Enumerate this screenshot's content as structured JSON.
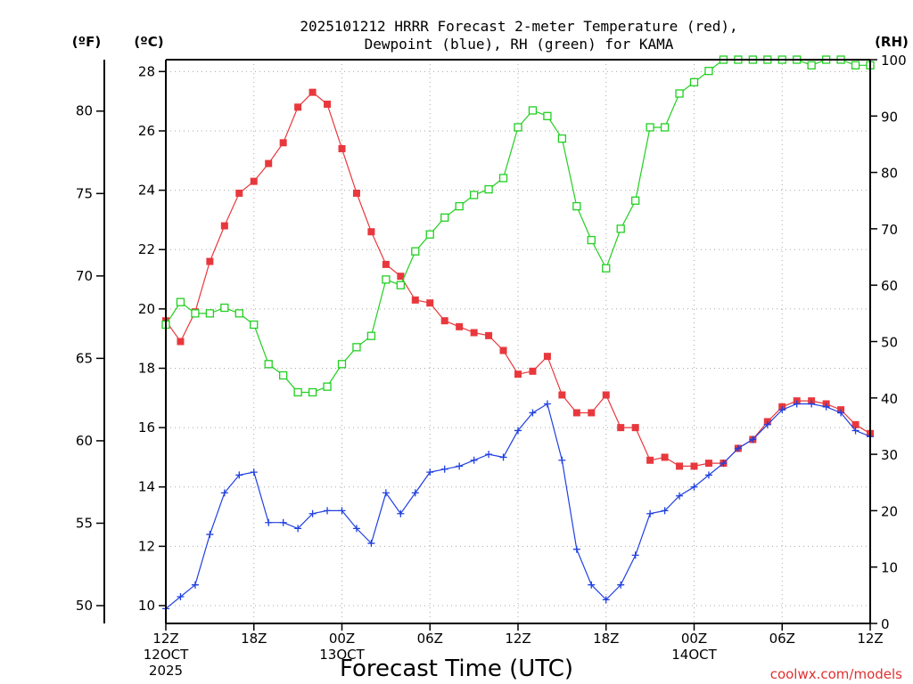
{
  "chart_data": {
    "type": "line",
    "title_line1": "2025101212 HRRR Forecast 2-meter Temperature (red),",
    "title_line2": "Dewpoint (blue), RH (green) for KAMA",
    "xlabel": "Forecast Time (UTC)",
    "credit": "coolwx.com/models",
    "unit_labels": {
      "fahrenheit": "(ºF)",
      "celsius": "(ºC)",
      "rh": "(RH)"
    },
    "x_ticks": [
      {
        "h": 0,
        "label": "12Z",
        "sub1": "12OCT",
        "sub2": "2025"
      },
      {
        "h": 6,
        "label": "18Z"
      },
      {
        "h": 12,
        "label": "00Z",
        "sub1": "13OCT"
      },
      {
        "h": 18,
        "label": "06Z"
      },
      {
        "h": 24,
        "label": "12Z"
      },
      {
        "h": 30,
        "label": "18Z"
      },
      {
        "h": 36,
        "label": "00Z",
        "sub1": "14OCT"
      },
      {
        "h": 42,
        "label": "06Z"
      },
      {
        "h": 48,
        "label": "12Z"
      }
    ],
    "celsius_ticks": [
      "10",
      "12",
      "14",
      "16",
      "18",
      "20",
      "22",
      "24",
      "26",
      "28"
    ],
    "fahrenheit_ticks": [
      "50",
      "55",
      "60",
      "65",
      "70",
      "75",
      "80"
    ],
    "rh_ticks": [
      "0",
      "10",
      "20",
      "30",
      "40",
      "50",
      "60",
      "70",
      "80",
      "90",
      "100"
    ],
    "xlim": [
      0,
      48
    ],
    "ylim_c": [
      9.4,
      28.4
    ],
    "ylim_rh": [
      0,
      100
    ],
    "series": [
      {
        "name": "Temperature",
        "color": "#e8383d",
        "marker": "filled-square",
        "values": [
          19.6,
          18.9,
          19.9,
          21.6,
          22.8,
          23.9,
          24.3,
          24.9,
          25.6,
          26.8,
          27.3,
          26.9,
          25.4,
          23.9,
          22.6,
          21.5,
          21.1,
          20.3,
          20.2,
          19.6,
          19.4,
          19.2,
          19.1,
          18.6,
          17.8,
          17.9,
          18.4,
          17.1,
          16.5,
          16.5,
          17.1,
          16.0,
          16.0,
          14.9,
          15.0,
          14.7,
          14.7,
          14.8,
          14.8,
          15.3,
          15.6,
          16.2,
          16.7,
          16.9,
          16.9,
          16.8,
          16.6,
          16.1,
          15.8
        ]
      },
      {
        "name": "Dewpoint",
        "color": "#2040e0",
        "marker": "plus",
        "values": [
          9.9,
          10.3,
          10.7,
          12.4,
          13.8,
          14.4,
          14.5,
          12.8,
          12.8,
          12.6,
          13.1,
          13.2,
          13.2,
          12.6,
          12.1,
          13.8,
          13.1,
          13.8,
          14.5,
          14.6,
          14.7,
          14.9,
          15.1,
          15.0,
          15.9,
          16.5,
          16.8,
          14.9,
          11.9,
          10.7,
          10.2,
          10.7,
          11.7,
          13.1,
          13.2,
          13.7,
          14.0,
          14.4,
          14.8,
          15.3,
          15.6,
          16.1,
          16.6,
          16.8,
          16.8,
          16.7,
          16.5,
          15.9,
          15.7
        ]
      },
      {
        "name": "RH",
        "color": "#20d020",
        "marker": "open-square",
        "values": [
          53,
          57,
          55,
          55,
          56,
          55,
          53,
          46,
          44,
          41,
          41,
          42,
          46,
          49,
          51,
          61,
          60,
          66,
          69,
          72,
          74,
          76,
          77,
          79,
          88,
          91,
          90,
          86,
          74,
          68,
          63,
          70,
          75,
          88,
          88,
          94,
          96,
          98,
          100,
          100,
          100,
          100,
          100,
          100,
          99,
          100,
          100,
          99,
          99
        ]
      }
    ]
  }
}
